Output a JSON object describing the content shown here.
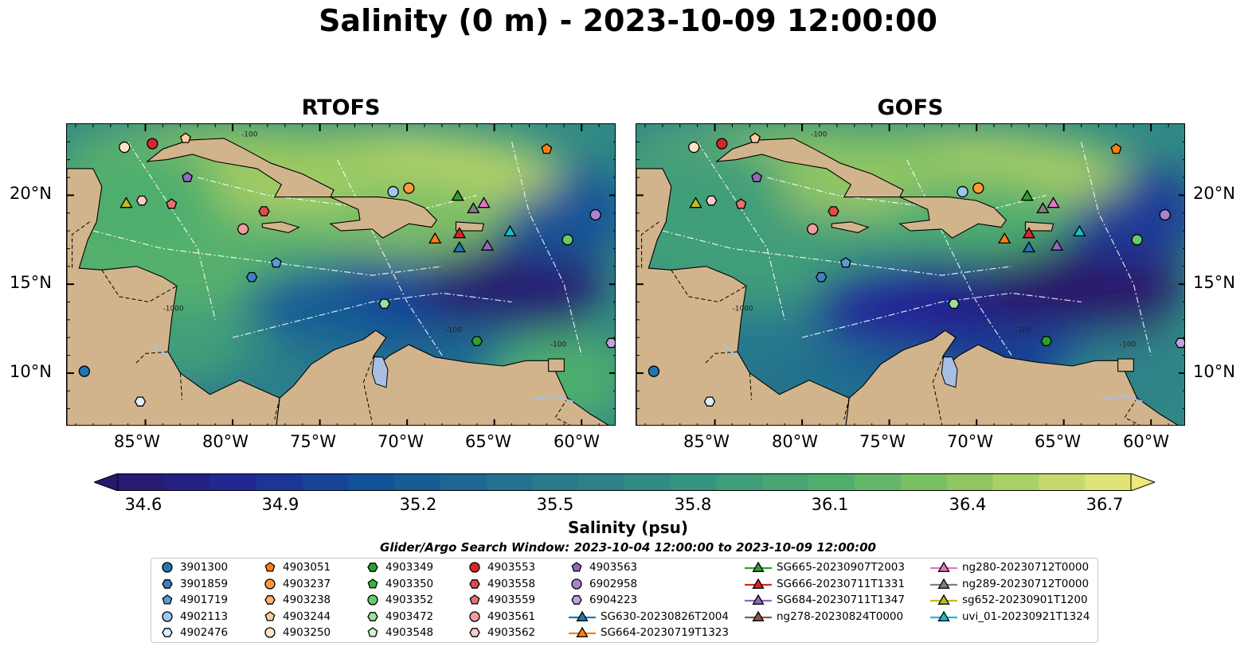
{
  "title": "Salinity (0 m) - 2023-10-09 12:00:00",
  "panels": [
    {
      "title": "RTOFS",
      "id": "rtofs"
    },
    {
      "title": "GOFS",
      "id": "gofs"
    }
  ],
  "map": {
    "lon_range": [
      -89.5,
      -58.0
    ],
    "lat_range": [
      7.0,
      24.0
    ],
    "lon_ticks": [
      "85°W",
      "80°W",
      "75°W",
      "70°W",
      "65°W",
      "60°W"
    ],
    "lat_ticks": [
      "20°N",
      "15°N",
      "10°N"
    ],
    "land_color": "#d2b48c",
    "lake_color": "#a6bfe3",
    "contour_labels": [
      "-100",
      "-1000",
      "-100",
      "-100"
    ]
  },
  "colorbar": {
    "label": "Salinity (psu)",
    "ticks": [
      "34.6",
      "34.9",
      "35.2",
      "35.5",
      "35.8",
      "36.1",
      "36.4",
      "36.7"
    ],
    "range": [
      34.6,
      36.7
    ],
    "colormap": "haline",
    "extend": "both"
  },
  "search_window": "Glider/Argo Search Window: 2023-10-04 12:00:00 to 2023-10-09 12:00:00",
  "legend": [
    {
      "label": "3901300",
      "marker": "circle",
      "color": "#1f77b4"
    },
    {
      "label": "3901859",
      "marker": "hexagon",
      "color": "#3a82c4"
    },
    {
      "label": "4901719",
      "marker": "pentagon",
      "color": "#5a9bd6"
    },
    {
      "label": "4902113",
      "marker": "circle",
      "color": "#9cc8ee"
    },
    {
      "label": "4902476",
      "marker": "hexagon",
      "color": "#dceefb"
    },
    {
      "label": "4903051",
      "marker": "pentagon",
      "color": "#ff7f0e"
    },
    {
      "label": "4903237",
      "marker": "circle",
      "color": "#ff9a3c"
    },
    {
      "label": "4903238",
      "marker": "hexagon",
      "color": "#ffb36b"
    },
    {
      "label": "4903244",
      "marker": "pentagon",
      "color": "#ffcc99"
    },
    {
      "label": "4903250",
      "marker": "circle",
      "color": "#ffe3c6"
    },
    {
      "label": "4903349",
      "marker": "hexagon",
      "color": "#2ca02c"
    },
    {
      "label": "4903350",
      "marker": "pentagon",
      "color": "#3cb43c"
    },
    {
      "label": "4903352",
      "marker": "circle",
      "color": "#66cc66"
    },
    {
      "label": "4903472",
      "marker": "hexagon",
      "color": "#99e099"
    },
    {
      "label": "4903548",
      "marker": "pentagon",
      "color": "#ccf5cc"
    },
    {
      "label": "4903553",
      "marker": "circle",
      "color": "#d62728"
    },
    {
      "label": "4903558",
      "marker": "hexagon",
      "color": "#e04b4b"
    },
    {
      "label": "4903559",
      "marker": "pentagon",
      "color": "#e87070"
    },
    {
      "label": "4903561",
      "marker": "circle",
      "color": "#f29c9c"
    },
    {
      "label": "4903562",
      "marker": "hexagon",
      "color": "#fbc9c9"
    },
    {
      "label": "4903563",
      "marker": "pentagon",
      "color": "#9467bd"
    },
    {
      "label": "6902958",
      "marker": "circle",
      "color": "#a983d0"
    },
    {
      "label": "6904223",
      "marker": "hexagon",
      "color": "#c1a3e0"
    },
    {
      "label": "SG630-20230826T2004",
      "marker": "triangle-line",
      "color": "#1f77b4"
    },
    {
      "label": "SG664-20230719T1323",
      "marker": "triangle-line",
      "color": "#ff7f0e"
    },
    {
      "label": "SG665-20230907T2003",
      "marker": "triangle-line",
      "color": "#2ca02c"
    },
    {
      "label": "SG666-20230711T1331",
      "marker": "triangle-line",
      "color": "#d62728"
    },
    {
      "label": "SG684-20230711T1347",
      "marker": "triangle-line",
      "color": "#9467bd"
    },
    {
      "label": "ng278-20230824T0000",
      "marker": "triangle-line",
      "color": "#8c564b"
    },
    {
      "label": "ng280-20230712T0000",
      "marker": "triangle-line",
      "color": "#e377c2"
    },
    {
      "label": "ng289-20230712T0000",
      "marker": "triangle-line",
      "color": "#7f7f7f"
    },
    {
      "label": "sg652-20230901T1200",
      "marker": "triangle-line",
      "color": "#bcbd22"
    },
    {
      "label": "uvi_01-20230921T1324",
      "marker": "triangle-line",
      "color": "#17becf"
    }
  ],
  "observations": [
    {
      "label": "3901300",
      "lon": -88.5,
      "lat": 10.1
    },
    {
      "label": "4902476",
      "lon": -85.3,
      "lat": 8.4
    },
    {
      "label": "4903250",
      "lon": -86.2,
      "lat": 22.7
    },
    {
      "label": "4903553",
      "lon": -84.6,
      "lat": 22.9
    },
    {
      "label": "4903244",
      "lon": -82.7,
      "lat": 23.2
    },
    {
      "label": "4903563",
      "lon": -82.6,
      "lat": 21.0
    },
    {
      "label": "sg652-20230901T1200",
      "lon": -86.1,
      "lat": 19.5
    },
    {
      "label": "4903562",
      "lon": -85.2,
      "lat": 19.7
    },
    {
      "label": "4903559",
      "lon": -83.5,
      "lat": 19.5
    },
    {
      "label": "4903558",
      "lon": -78.2,
      "lat": 19.1
    },
    {
      "label": "4903561",
      "lon": -79.4,
      "lat": 18.1
    },
    {
      "label": "4901719",
      "lon": -77.5,
      "lat": 16.2
    },
    {
      "label": "3901859",
      "lon": -78.9,
      "lat": 15.4
    },
    {
      "label": "4902113",
      "lon": -70.8,
      "lat": 20.2
    },
    {
      "label": "4903237",
      "lon": -69.9,
      "lat": 20.4
    },
    {
      "label": "SG665-20230907T2003",
      "lon": -67.1,
      "lat": 19.9
    },
    {
      "label": "ng289-20230712T0000",
      "lon": -66.2,
      "lat": 19.2
    },
    {
      "label": "ng280-20230712T0000",
      "lon": -65.6,
      "lat": 19.5
    },
    {
      "label": "SG664-20230719T1323",
      "lon": -68.4,
      "lat": 17.5
    },
    {
      "label": "SG666-20230711T1331",
      "lon": -67.0,
      "lat": 17.8
    },
    {
      "label": "SG630-20230826T2004",
      "lon": -67.0,
      "lat": 17.0
    },
    {
      "label": "SG684-20230711T1347",
      "lon": -65.4,
      "lat": 17.1
    },
    {
      "label": "uvi_01-20230921T1324",
      "lon": -64.1,
      "lat": 17.9
    },
    {
      "label": "4903051",
      "lon": -62.0,
      "lat": 22.6
    },
    {
      "label": "6902958",
      "lon": -59.2,
      "lat": 18.9
    },
    {
      "label": "4903352",
      "lon": -60.8,
      "lat": 17.5
    },
    {
      "label": "4903472",
      "lon": -71.3,
      "lat": 13.9
    },
    {
      "label": "4903349",
      "lon": -66.0,
      "lat": 11.8
    },
    {
      "label": "6904223",
      "lon": -58.3,
      "lat": 11.7
    }
  ]
}
